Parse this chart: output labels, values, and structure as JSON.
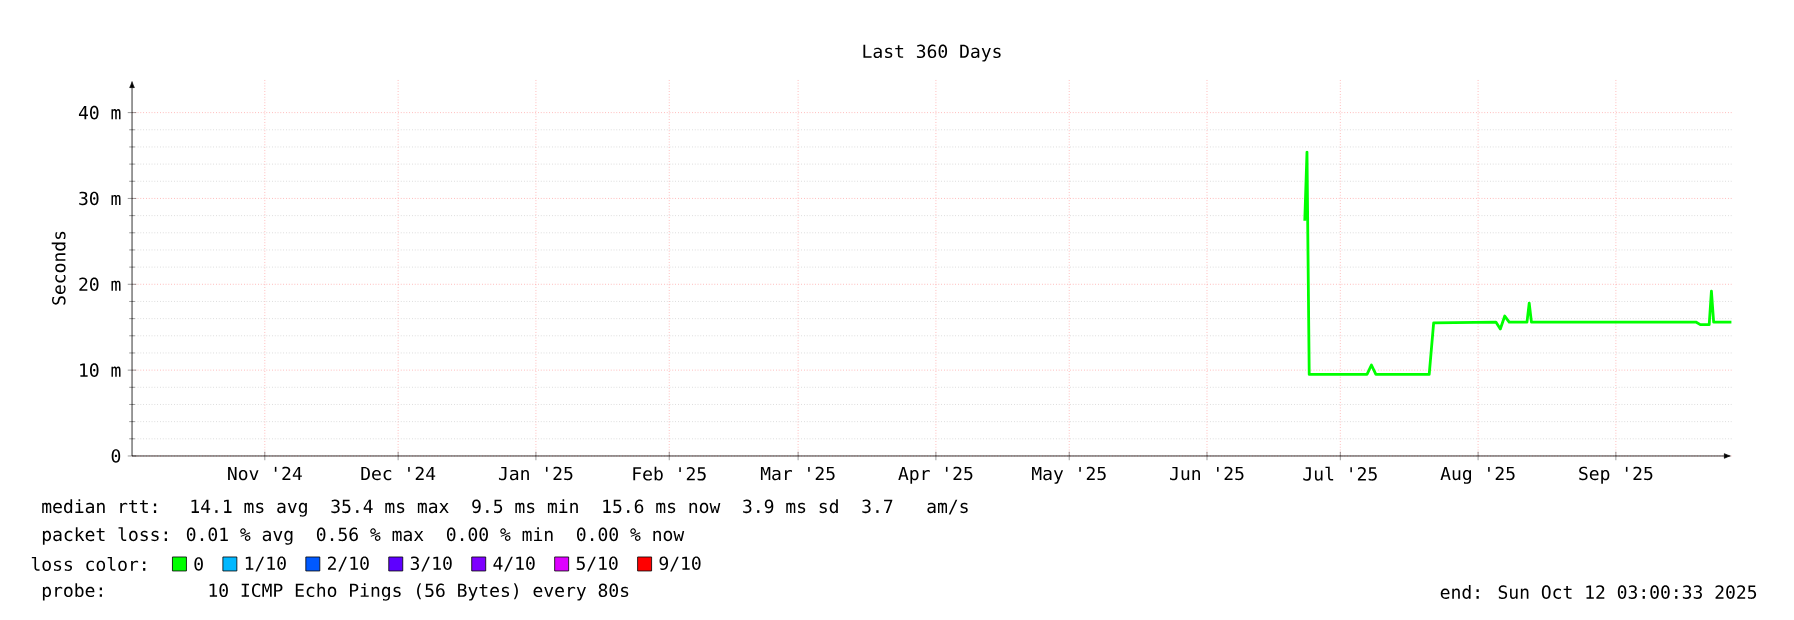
{
  "chart_data": {
    "type": "line",
    "title": "Last 360 Days",
    "ylabel": "Seconds",
    "legend_title": "loss color:",
    "x": [
      "2025-07-08T00:00",
      "2025-07-08T12:00",
      "2025-07-09T00:00",
      "2025-07-22",
      "2025-07-23",
      "2025-07-24",
      "2025-08-05",
      "2025-08-06",
      "2025-08-20",
      "2025-08-21",
      "2025-08-22",
      "2025-08-23",
      "2025-08-27",
      "2025-08-27T12:00",
      "2025-08-28",
      "2025-10-04",
      "2025-10-05",
      "2025-10-07",
      "2025-10-07T12:00",
      "2025-10-08",
      "2025-10-12"
    ],
    "series": [
      {
        "name": "0",
        "color": "#00ff00",
        "values": [
          27.4,
          35.4,
          9.5,
          9.5,
          10.6,
          9.5,
          9.5,
          15.5,
          15.6,
          14.8,
          16.3,
          15.6,
          15.6,
          17.8,
          15.6,
          15.6,
          15.3,
          15.3,
          19.2,
          15.6,
          15.6
        ]
      },
      {
        "name": "1/10",
        "color": "#00b8ff",
        "values": [
          null,
          null,
          null,
          null,
          null,
          null,
          null,
          null,
          null,
          null,
          null,
          null,
          null,
          null,
          null,
          null,
          null,
          null,
          null,
          null,
          null
        ]
      },
      {
        "name": "2/10",
        "color": "#0059ff",
        "values": [
          null,
          null,
          null,
          null,
          null,
          null,
          null,
          null,
          null,
          null,
          null,
          null,
          null,
          null,
          null,
          null,
          null,
          null,
          null,
          null,
          null
        ]
      },
      {
        "name": "3/10",
        "color": "#5e00ff",
        "values": [
          null,
          null,
          null,
          null,
          null,
          null,
          null,
          null,
          null,
          null,
          null,
          null,
          null,
          null,
          null,
          null,
          null,
          null,
          null,
          null,
          null
        ]
      },
      {
        "name": "4/10",
        "color": "#7e00ff",
        "values": [
          null,
          null,
          null,
          null,
          null,
          null,
          null,
          null,
          null,
          null,
          null,
          null,
          null,
          null,
          null,
          null,
          null,
          null,
          null,
          null,
          null
        ]
      },
      {
        "name": "5/10",
        "color": "#dd00ff",
        "values": [
          null,
          null,
          null,
          null,
          null,
          null,
          null,
          null,
          null,
          null,
          null,
          null,
          null,
          null,
          null,
          null,
          null,
          null,
          null,
          null,
          null
        ]
      },
      {
        "name": "9/10",
        "color": "#ff0000",
        "values": [
          null,
          null,
          null,
          null,
          null,
          null,
          null,
          null,
          null,
          null,
          null,
          null,
          null,
          null,
          null,
          null,
          null,
          null,
          null,
          null,
          null
        ]
      }
    ],
    "xlim": [
      "2024-10-17T03:00",
      "2025-10-12T03:00"
    ],
    "xticks": [
      {
        "value": "2024-11-16",
        "label": "Nov '24"
      },
      {
        "value": "2024-12-16",
        "label": "Dec '24"
      },
      {
        "value": "2025-01-16",
        "label": "Jan '25"
      },
      {
        "value": "2025-02-15",
        "label": "Feb '25"
      },
      {
        "value": "2025-03-16",
        "label": "Mar '25"
      },
      {
        "value": "2025-04-16",
        "label": "Apr '25"
      },
      {
        "value": "2025-05-16",
        "label": "May '25"
      },
      {
        "value": "2025-06-16",
        "label": "Jun '25"
      },
      {
        "value": "2025-07-16",
        "label": "Jul '25"
      },
      {
        "value": "2025-08-16",
        "label": "Aug '25"
      },
      {
        "value": "2025-09-16",
        "label": "Sep '25"
      }
    ],
    "ylim": [
      0,
      43.8
    ],
    "yticks": [
      {
        "value": 0,
        "label": "0"
      },
      {
        "value": 10,
        "label": "10 m"
      },
      {
        "value": 20,
        "label": "20 m"
      },
      {
        "value": 30,
        "label": "30 m"
      },
      {
        "value": 40,
        "label": "40 m"
      }
    ],
    "grid": true,
    "legend": "bottom",
    "marker": "none",
    "line_style": "solid",
    "annotations": [
      "median rtt:  14.1 ms avg  35.4 ms max  9.5 ms min  15.6 ms now  3.9 ms sd  3.7   am/s",
      "packet loss: 0.01 % avg  0.56 % max  0.00 % min  0.00 % now",
      "probe:       10 ICMP Echo Pings (56 Bytes) every 80s",
      "end: Sun Oct 12 03:00:33 2025"
    ]
  }
}
